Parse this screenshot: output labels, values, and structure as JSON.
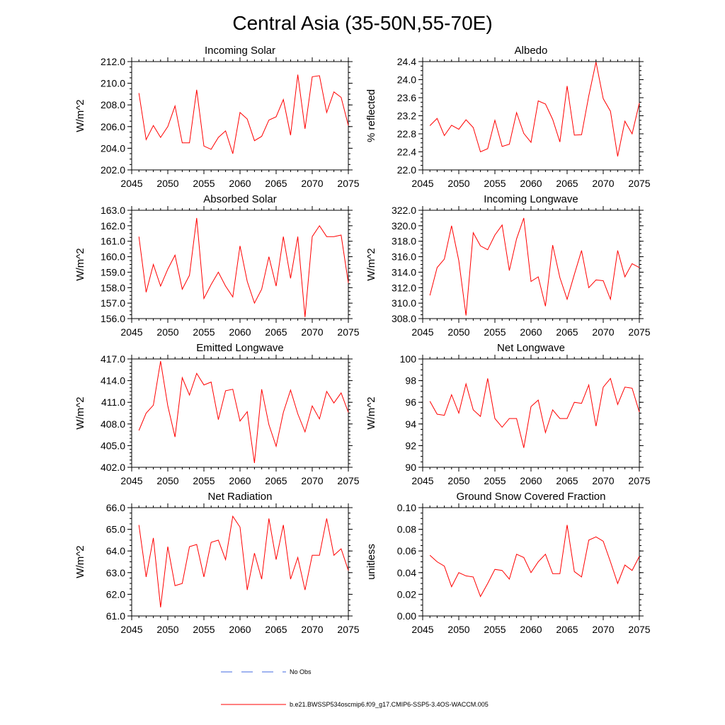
{
  "figure_title": "Central Asia (35-50N,55-70E)",
  "colors": {
    "series": "#ff0000",
    "no_obs": "#4169e1",
    "frame": "#000000"
  },
  "legend": {
    "no_obs_label": "No Obs",
    "model_label": "b.e21.BWSSP534oscmip6.f09_g17.CMIP6-SSP5-3.4OS-WACCM.005"
  },
  "chart_data": [
    {
      "type": "line",
      "title": "Incoming Solar",
      "ylabel": "W/m^2",
      "xlim": [
        2045,
        2075
      ],
      "ylim": [
        202.0,
        212.0
      ],
      "xticks": [
        2045,
        2050,
        2055,
        2060,
        2065,
        2070,
        2075
      ],
      "yticks": [
        "202.0",
        "204.0",
        "206.0",
        "208.0",
        "210.0",
        "212.0"
      ],
      "y_minor_step": 0.5,
      "x": [
        2046,
        2047,
        2048,
        2049,
        2050,
        2051,
        2052,
        2053,
        2054,
        2055,
        2056,
        2057,
        2058,
        2059,
        2060,
        2061,
        2062,
        2063,
        2064,
        2065,
        2066,
        2067,
        2068,
        2069,
        2070,
        2071,
        2072,
        2073,
        2074,
        2075
      ],
      "values": [
        209.1,
        204.8,
        206.1,
        205.0,
        206.0,
        207.9,
        204.5,
        204.5,
        209.4,
        204.2,
        203.9,
        205.0,
        205.6,
        203.5,
        207.3,
        206.7,
        204.7,
        205.1,
        206.6,
        206.9,
        208.5,
        205.2,
        210.8,
        205.8,
        210.6,
        210.7,
        207.3,
        209.2,
        208.7,
        206.1
      ]
    },
    {
      "type": "line",
      "title": "Albedo",
      "ylabel": "% reflected",
      "xlim": [
        2045,
        2075
      ],
      "ylim": [
        22.0,
        24.4
      ],
      "xticks": [
        2045,
        2050,
        2055,
        2060,
        2065,
        2070,
        2075
      ],
      "yticks": [
        "22.0",
        "22.4",
        "22.8",
        "23.2",
        "23.6",
        "24.0",
        "24.4"
      ],
      "y_minor_step": 0.1,
      "x": [
        2046,
        2047,
        2048,
        2049,
        2050,
        2051,
        2052,
        2053,
        2054,
        2055,
        2056,
        2057,
        2058,
        2059,
        2060,
        2061,
        2062,
        2063,
        2064,
        2065,
        2066,
        2067,
        2068,
        2069,
        2070,
        2071,
        2072,
        2073,
        2074,
        2075
      ],
      "values": [
        22.98,
        23.14,
        22.76,
        22.99,
        22.9,
        23.11,
        22.94,
        22.4,
        22.47,
        23.1,
        22.52,
        22.57,
        23.27,
        22.81,
        22.61,
        23.53,
        23.46,
        23.12,
        22.62,
        23.86,
        22.77,
        22.78,
        23.64,
        24.39,
        23.58,
        23.3,
        22.3,
        23.08,
        22.8,
        23.48
      ]
    },
    {
      "type": "line",
      "title": "Absorbed Solar",
      "ylabel": "W/m^2",
      "xlim": [
        2045,
        2075
      ],
      "ylim": [
        156.0,
        163.0
      ],
      "xticks": [
        2045,
        2050,
        2055,
        2060,
        2065,
        2070,
        2075
      ],
      "yticks": [
        "156.0",
        "157.0",
        "158.0",
        "159.0",
        "160.0",
        "161.0",
        "162.0",
        "163.0"
      ],
      "y_minor_step": 0.25,
      "x": [
        2046,
        2047,
        2048,
        2049,
        2050,
        2051,
        2052,
        2053,
        2054,
        2055,
        2056,
        2057,
        2058,
        2059,
        2060,
        2061,
        2062,
        2063,
        2064,
        2065,
        2066,
        2067,
        2068,
        2069,
        2070,
        2071,
        2072,
        2073,
        2074,
        2075
      ],
      "values": [
        161.3,
        157.7,
        159.5,
        158.1,
        159.2,
        160.1,
        157.9,
        158.8,
        162.5,
        157.3,
        158.2,
        159.0,
        158.1,
        157.4,
        160.7,
        158.4,
        157.0,
        157.9,
        160.0,
        158.1,
        161.3,
        158.6,
        161.3,
        156.1,
        161.3,
        162.0,
        161.3,
        161.3,
        161.4,
        158.3
      ]
    },
    {
      "type": "line",
      "title": "Incoming Longwave",
      "ylabel": "W/m^2",
      "xlim": [
        2045,
        2075
      ],
      "ylim": [
        308.0,
        322.0
      ],
      "xticks": [
        2045,
        2050,
        2055,
        2060,
        2065,
        2070,
        2075
      ],
      "yticks": [
        "308.0",
        "310.0",
        "312.0",
        "314.0",
        "316.0",
        "318.0",
        "320.0",
        "322.0"
      ],
      "y_minor_step": 0.5,
      "x": [
        2046,
        2047,
        2048,
        2049,
        2050,
        2051,
        2052,
        2053,
        2054,
        2055,
        2056,
        2057,
        2058,
        2059,
        2060,
        2061,
        2062,
        2063,
        2064,
        2065,
        2066,
        2067,
        2068,
        2069,
        2070,
        2071,
        2072,
        2073,
        2074,
        2075
      ],
      "values": [
        311.0,
        314.6,
        315.7,
        320.0,
        315.5,
        308.4,
        319.1,
        317.4,
        316.9,
        318.8,
        320.1,
        314.2,
        318.3,
        321.0,
        312.8,
        313.4,
        309.6,
        317.5,
        313.3,
        310.5,
        313.7,
        316.8,
        312.0,
        313.0,
        312.9,
        310.5,
        316.8,
        313.4,
        315.1,
        314.6
      ]
    },
    {
      "type": "line",
      "title": "Emitted Longwave",
      "ylabel": "W/m^2",
      "xlim": [
        2045,
        2075
      ],
      "ylim": [
        402.0,
        417.0
      ],
      "xticks": [
        2045,
        2050,
        2055,
        2060,
        2065,
        2070,
        2075
      ],
      "yticks": [
        "402.0",
        "405.0",
        "408.0",
        "411.0",
        "414.0",
        "417.0"
      ],
      "y_minor_step": 0.5,
      "x": [
        2046,
        2047,
        2048,
        2049,
        2050,
        2051,
        2052,
        2053,
        2054,
        2055,
        2056,
        2057,
        2058,
        2059,
        2060,
        2061,
        2062,
        2063,
        2064,
        2065,
        2066,
        2067,
        2068,
        2069,
        2070,
        2071,
        2072,
        2073,
        2074,
        2075
      ],
      "values": [
        407.1,
        409.5,
        410.6,
        416.7,
        410.5,
        406.2,
        414.4,
        412.0,
        415.0,
        413.4,
        413.8,
        408.6,
        412.6,
        412.8,
        408.4,
        409.7,
        402.6,
        412.8,
        407.9,
        404.9,
        409.6,
        412.7,
        409.4,
        406.9,
        410.5,
        408.7,
        412.5,
        410.9,
        412.3,
        409.6
      ]
    },
    {
      "type": "line",
      "title": "Net Longwave",
      "ylabel": "W/m^2",
      "xlim": [
        2045,
        2075
      ],
      "ylim": [
        90,
        100
      ],
      "xticks": [
        2045,
        2050,
        2055,
        2060,
        2065,
        2070,
        2075
      ],
      "yticks": [
        "90",
        "92",
        "94",
        "96",
        "98",
        "100"
      ],
      "y_minor_step": 0.5,
      "x": [
        2046,
        2047,
        2048,
        2049,
        2050,
        2051,
        2052,
        2053,
        2054,
        2055,
        2056,
        2057,
        2058,
        2059,
        2060,
        2061,
        2062,
        2063,
        2064,
        2065,
        2066,
        2067,
        2068,
        2069,
        2070,
        2071,
        2072,
        2073,
        2074,
        2075
      ],
      "values": [
        96.1,
        94.9,
        94.8,
        96.7,
        95.0,
        97.7,
        95.3,
        94.7,
        98.2,
        94.5,
        93.7,
        94.5,
        94.5,
        91.8,
        95.6,
        96.2,
        93.2,
        95.3,
        94.5,
        94.5,
        96.0,
        95.9,
        97.6,
        93.8,
        97.4,
        98.2,
        95.8,
        97.4,
        97.3,
        95.1
      ]
    },
    {
      "type": "line",
      "title": "Net Radiation",
      "ylabel": "W/m^2",
      "xlim": [
        2045,
        2075
      ],
      "ylim": [
        61.0,
        66.0
      ],
      "xticks": [
        2045,
        2050,
        2055,
        2060,
        2065,
        2070,
        2075
      ],
      "yticks": [
        "61.0",
        "62.0",
        "63.0",
        "64.0",
        "65.0",
        "66.0"
      ],
      "y_minor_step": 0.25,
      "x": [
        2046,
        2047,
        2048,
        2049,
        2050,
        2051,
        2052,
        2053,
        2054,
        2055,
        2056,
        2057,
        2058,
        2059,
        2060,
        2061,
        2062,
        2063,
        2064,
        2065,
        2066,
        2067,
        2068,
        2069,
        2070,
        2071,
        2072,
        2073,
        2074,
        2075
      ],
      "values": [
        65.2,
        62.8,
        64.6,
        61.4,
        64.2,
        62.4,
        62.5,
        64.2,
        64.3,
        62.8,
        64.4,
        64.5,
        63.6,
        65.6,
        65.1,
        62.2,
        63.9,
        62.7,
        65.5,
        63.6,
        65.2,
        62.7,
        63.7,
        62.2,
        63.8,
        63.8,
        65.5,
        63.8,
        64.1,
        63.1
      ]
    },
    {
      "type": "line",
      "title": "Ground Snow Covered Fraction",
      "ylabel": "unitless",
      "xlim": [
        2045,
        2075
      ],
      "ylim": [
        0.0,
        0.1
      ],
      "xticks": [
        2045,
        2050,
        2055,
        2060,
        2065,
        2070,
        2075
      ],
      "yticks": [
        "0.00",
        "0.02",
        "0.04",
        "0.06",
        "0.08",
        "0.10"
      ],
      "y_minor_step": 0.005,
      "x": [
        2046,
        2047,
        2048,
        2049,
        2050,
        2051,
        2052,
        2053,
        2054,
        2055,
        2056,
        2057,
        2058,
        2059,
        2060,
        2061,
        2062,
        2063,
        2064,
        2065,
        2066,
        2067,
        2068,
        2069,
        2070,
        2071,
        2072,
        2073,
        2074,
        2075
      ],
      "values": [
        0.056,
        0.05,
        0.046,
        0.027,
        0.04,
        0.037,
        0.036,
        0.018,
        0.03,
        0.043,
        0.042,
        0.034,
        0.057,
        0.054,
        0.04,
        0.05,
        0.057,
        0.039,
        0.039,
        0.084,
        0.041,
        0.036,
        0.07,
        0.073,
        0.069,
        0.05,
        0.03,
        0.047,
        0.042,
        0.055
      ]
    }
  ]
}
